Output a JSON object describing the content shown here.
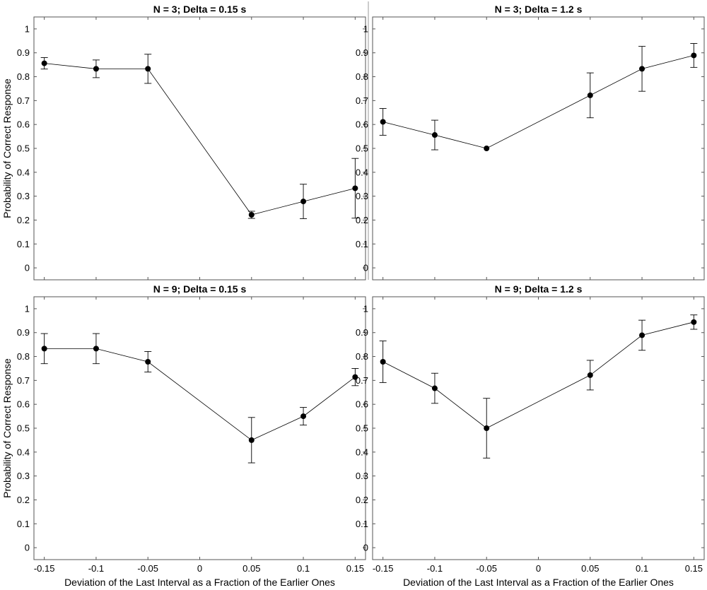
{
  "chart_data": [
    {
      "type": "line",
      "title": "N = 3; Delta = 0.15 s",
      "xlabel": "",
      "ylabel": "Probability of Correct Response",
      "xlim": [
        -0.16,
        0.16
      ],
      "ylim": [
        -0.05,
        1.05
      ],
      "xticks": [
        "-0.15",
        "-0.1",
        "-0.05",
        "0",
        "0.05",
        "0.1",
        "0.15"
      ],
      "yticks": [
        "0",
        "0.1",
        "0.2",
        "0.3",
        "0.4",
        "0.5",
        "0.6",
        "0.7",
        "0.8",
        "0.9",
        "1"
      ],
      "grid": false,
      "series": [
        {
          "x": [
            -0.15,
            -0.1,
            -0.05,
            0.05,
            0.1,
            0.15
          ],
          "y": [
            0.856,
            0.833,
            0.833,
            0.222,
            0.278,
            0.333
          ],
          "err": [
            0.024,
            0.037,
            0.061,
            0.015,
            0.072,
            0.125
          ]
        }
      ]
    },
    {
      "type": "line",
      "title": "N = 3; Delta = 1.2 s",
      "xlabel": "",
      "ylabel": "",
      "xlim": [
        -0.16,
        0.16
      ],
      "ylim": [
        -0.05,
        1.05
      ],
      "xticks": [
        "-0.15",
        "-0.1",
        "-0.05",
        "0",
        "0.05",
        "0.1",
        "0.15"
      ],
      "yticks": [
        "0",
        "0.1",
        "0.2",
        "0.3",
        "0.4",
        "0.5",
        "0.6",
        "0.7",
        "0.8",
        "0.9",
        "1"
      ],
      "grid": false,
      "series": [
        {
          "x": [
            -0.15,
            -0.1,
            -0.05,
            0.05,
            0.1,
            0.15
          ],
          "y": [
            0.611,
            0.556,
            0.5,
            0.722,
            0.833,
            0.889
          ],
          "err": [
            0.056,
            0.062,
            0.0,
            0.094,
            0.094,
            0.05
          ]
        }
      ]
    },
    {
      "type": "line",
      "title": "N = 9; Delta = 0.15 s",
      "xlabel": "Deviation of the Last Interval as a Fraction of the Earlier Ones",
      "ylabel": "Probability of Correct Response",
      "xlim": [
        -0.16,
        0.16
      ],
      "ylim": [
        -0.05,
        1.05
      ],
      "xticks": [
        "-0.15",
        "-0.1",
        "-0.05",
        "0",
        "0.05",
        "0.1",
        "0.15"
      ],
      "yticks": [
        "0",
        "0.1",
        "0.2",
        "0.3",
        "0.4",
        "0.5",
        "0.6",
        "0.7",
        "0.8",
        "0.9",
        "1"
      ],
      "grid": false,
      "series": [
        {
          "x": [
            -0.15,
            -0.1,
            -0.05,
            0.05,
            0.1,
            0.15
          ],
          "y": [
            0.833,
            0.833,
            0.778,
            0.45,
            0.55,
            0.714
          ],
          "err": [
            0.063,
            0.063,
            0.043,
            0.095,
            0.037,
            0.036
          ]
        }
      ]
    },
    {
      "type": "line",
      "title": "N = 9; Delta = 1.2 s",
      "xlabel": "Deviation of the Last Interval as a Fraction of the Earlier Ones",
      "ylabel": "",
      "xlim": [
        -0.16,
        0.16
      ],
      "ylim": [
        -0.05,
        1.05
      ],
      "xticks": [
        "-0.15",
        "-0.1",
        "-0.05",
        "0",
        "0.05",
        "0.1",
        "0.15"
      ],
      "yticks": [
        "0",
        "0.1",
        "0.2",
        "0.3",
        "0.4",
        "0.5",
        "0.6",
        "0.7",
        "0.8",
        "0.9",
        "1"
      ],
      "grid": false,
      "series": [
        {
          "x": [
            -0.15,
            -0.1,
            -0.05,
            0.05,
            0.1,
            0.15
          ],
          "y": [
            0.778,
            0.667,
            0.5,
            0.722,
            0.889,
            0.944
          ],
          "err": [
            0.087,
            0.063,
            0.125,
            0.062,
            0.063,
            0.03
          ]
        }
      ]
    }
  ]
}
